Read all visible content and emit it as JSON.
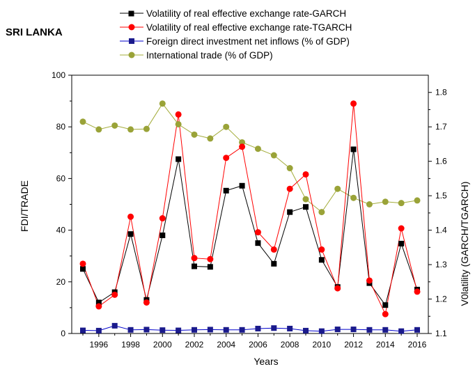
{
  "country": "SRI LANKA",
  "chart_data": {
    "type": "line",
    "xlabel": "Years",
    "ylabel": "FDI/TRADE",
    "y2label": "V0latility (GARCH/TGARCH)",
    "xlim": [
      1995,
      2016
    ],
    "ylim": [
      0,
      100
    ],
    "y2lim": [
      1.1,
      1.85
    ],
    "x_ticks": [
      1996,
      1998,
      2000,
      2002,
      2004,
      2006,
      2008,
      2010,
      2012,
      2014,
      2016
    ],
    "y_ticks": [
      0,
      20,
      40,
      60,
      80,
      100
    ],
    "y2_ticks": [
      1.1,
      1.2,
      1.3,
      1.4,
      1.5,
      1.6,
      1.7,
      1.8
    ],
    "x_tick_labels": [
      "1996",
      "1998",
      "2000",
      "2002",
      "2004",
      "2006",
      "2008",
      "2010",
      "2012",
      "2014",
      "2016"
    ],
    "y_tick_labels": [
      "0",
      "20",
      "40",
      "60",
      "80",
      "100"
    ],
    "y2_tick_labels": [
      "1.1",
      "1.2",
      "1.3",
      "1.4",
      "1.5",
      "1.6",
      "1.7",
      "1.8"
    ],
    "legend_position": "top",
    "grid": false,
    "x": [
      1995,
      1996,
      1997,
      1998,
      1999,
      2000,
      2001,
      2002,
      2003,
      2004,
      2005,
      2006,
      2007,
      2008,
      2009,
      2010,
      2011,
      2012,
      2013,
      2014,
      2015,
      2016
    ],
    "series": [
      {
        "name": "Volatility of real effective exchange rate-GARCH",
        "axis": "left",
        "marker": "square",
        "color": "#000000",
        "marker_color": "#000000",
        "values": [
          25,
          12,
          16,
          38.5,
          13,
          38,
          67.5,
          26,
          25.8,
          55.3,
          57.2,
          35,
          27,
          47,
          49,
          28.5,
          18,
          71.3,
          19.5,
          11,
          34.8,
          17
        ]
      },
      {
        "name": "Volatility of real effective exchange rate-TGARCH",
        "axis": "left",
        "marker": "circle",
        "color": "#ff0000",
        "marker_color": "#ff0000",
        "values": [
          27,
          10.5,
          15,
          45.2,
          12,
          44.6,
          84.8,
          29.2,
          28.8,
          68,
          72.3,
          39.2,
          32.5,
          56,
          61.6,
          32.5,
          17.5,
          89,
          20.5,
          7.5,
          40.7,
          16.2
        ]
      },
      {
        "name": "Foreign direct investment net inflows (% of GDP)",
        "axis": "left",
        "marker": "square",
        "color": "#0000cc",
        "marker_color": "#1a1a8c",
        "values": [
          1.2,
          1.1,
          3.0,
          1.4,
          1.5,
          1.3,
          1.2,
          1.4,
          1.5,
          1.4,
          1.4,
          1.9,
          2.1,
          1.9,
          1.1,
          0.9,
          1.6,
          1.6,
          1.4,
          1.4,
          0.9,
          1.4
        ]
      },
      {
        "name": "International trade (% of GDP)",
        "axis": "left",
        "marker": "circle",
        "color": "#a3ac3a",
        "marker_color": "#9aa338",
        "values": [
          82,
          79,
          80.5,
          79,
          79.2,
          89,
          81,
          77,
          75.5,
          80,
          74,
          71.5,
          69,
          64,
          52,
          47,
          56,
          52.5,
          50,
          51,
          50.5,
          51.5
        ]
      }
    ]
  }
}
